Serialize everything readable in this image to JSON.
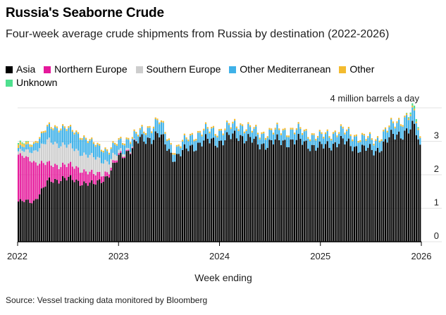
{
  "header": {
    "title": "Russia's Seaborne Crude",
    "subtitle": "Four-week average crude shipments from Russia by destination (2022-2026)"
  },
  "source": "Source: Vessel tracking data monitored by Bloomberg",
  "colors": {
    "Asia": "#000000",
    "Northern Europe": "#e5199b",
    "Southern Europe": "#cdcdcd",
    "Other Mediterranean": "#3fb1e8",
    "Other": "#f3bb2f",
    "Unknown": "#4fe08f"
  },
  "chart_data": {
    "type": "area",
    "title": "Russia's Seaborne Crude",
    "xlabel": "Week ending",
    "ylabel": "",
    "y_unit_label": "4 million barrels a day",
    "ylim": [
      0,
      4
    ],
    "y_ticks": [
      "0",
      "1",
      "2",
      "3"
    ],
    "x_ticks": [
      "2022",
      "2023",
      "2024",
      "2025",
      "2026"
    ],
    "legend": [
      "Asia",
      "Northern Europe",
      "Southern Europe",
      "Other Mediterranean",
      "Other",
      "Unknown"
    ],
    "x": [
      2022.0,
      2022.15,
      2022.3,
      2022.45,
      2022.6,
      2022.75,
      2022.9,
      2023.0,
      2023.2,
      2023.4,
      2023.55,
      2023.7,
      2023.85,
      2024.0,
      2024.2,
      2024.4,
      2024.6,
      2024.8,
      2025.0,
      2025.2,
      2025.4,
      2025.55,
      2025.7,
      2025.85,
      2025.95,
      2026.0
    ],
    "series": [
      {
        "name": "Asia",
        "values": [
          1.2,
          1.2,
          1.8,
          1.9,
          1.8,
          1.7,
          2.0,
          2.5,
          3.0,
          3.2,
          2.5,
          2.8,
          3.0,
          3.0,
          3.2,
          2.9,
          3.0,
          3.0,
          2.8,
          3.0,
          2.8,
          2.7,
          3.1,
          3.3,
          3.4,
          2.8
        ]
      },
      {
        "name": "Northern Europe",
        "values": [
          1.4,
          1.2,
          0.5,
          0.4,
          0.4,
          0.3,
          0.1,
          0.05,
          0.0,
          0.0,
          0.0,
          0.0,
          0.0,
          0.0,
          0.0,
          0.0,
          0.0,
          0.0,
          0.0,
          0.0,
          0.0,
          0.0,
          0.0,
          0.0,
          0.0,
          0.0
        ]
      },
      {
        "name": "Southern Europe",
        "values": [
          0.1,
          0.3,
          0.7,
          0.6,
          0.5,
          0.5,
          0.3,
          0.1,
          0.0,
          0.0,
          0.0,
          0.0,
          0.0,
          0.0,
          0.0,
          0.0,
          0.0,
          0.0,
          0.0,
          0.0,
          0.0,
          0.0,
          0.0,
          0.0,
          0.0,
          0.0
        ]
      },
      {
        "name": "Other Mediterranean",
        "values": [
          0.1,
          0.2,
          0.4,
          0.5,
          0.5,
          0.4,
          0.3,
          0.3,
          0.2,
          0.4,
          0.2,
          0.3,
          0.3,
          0.3,
          0.3,
          0.3,
          0.3,
          0.3,
          0.3,
          0.3,
          0.3,
          0.3,
          0.3,
          0.4,
          0.4,
          0.2
        ]
      },
      {
        "name": "Other",
        "values": [
          0.1,
          0.05,
          0.05,
          0.05,
          0.05,
          0.05,
          0.05,
          0.05,
          0.05,
          0.05,
          0.05,
          0.05,
          0.05,
          0.05,
          0.05,
          0.05,
          0.05,
          0.05,
          0.05,
          0.05,
          0.05,
          0.05,
          0.05,
          0.05,
          0.05,
          0.05
        ]
      },
      {
        "name": "Unknown",
        "values": [
          0.05,
          0.0,
          0.0,
          0.0,
          0.0,
          0.0,
          0.0,
          0.0,
          0.0,
          0.0,
          0.0,
          0.0,
          0.0,
          0.0,
          0.0,
          0.0,
          0.0,
          0.0,
          0.0,
          0.0,
          0.0,
          0.0,
          0.0,
          0.0,
          0.1,
          0.0
        ]
      }
    ]
  }
}
